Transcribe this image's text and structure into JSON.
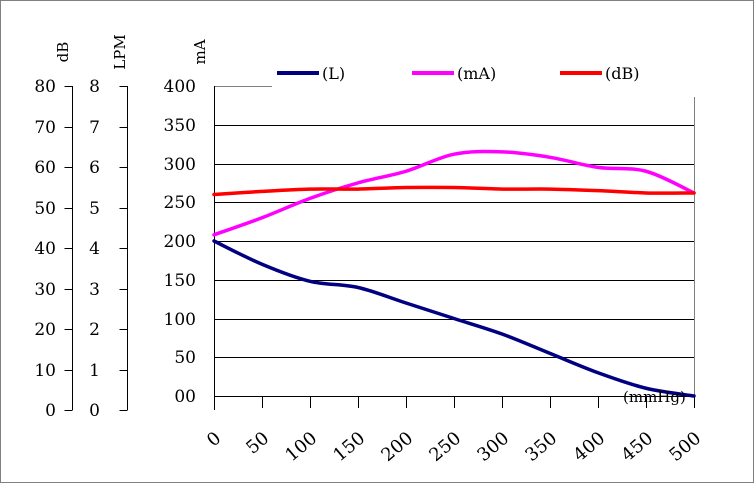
{
  "chart_data": {
    "type": "line",
    "x": [
      0,
      50,
      100,
      150,
      200,
      250,
      300,
      350,
      400,
      450,
      500
    ],
    "x_tick_labels": [
      "0",
      "50",
      "100",
      "150",
      "200",
      "250",
      "300",
      "350",
      "400",
      "450",
      "500"
    ],
    "x_unit": "(mmHg)",
    "y_axes": [
      {
        "title": "dB",
        "min": 0,
        "max": 80,
        "ticks": [
          "0",
          "10",
          "20",
          "30",
          "40",
          "50",
          "60",
          "70",
          "80"
        ]
      },
      {
        "title": "LPM",
        "min": 0,
        "max": 8,
        "ticks": [
          "0",
          "1",
          "2",
          "3",
          "4",
          "5",
          "6",
          "7",
          "8"
        ]
      },
      {
        "title": "mA",
        "min": 0,
        "max": 400,
        "ticks": [
          "00",
          "50",
          "100",
          "150",
          "200",
          "250",
          "300",
          "350",
          "400"
        ]
      }
    ],
    "series": [
      {
        "name": "(L)",
        "color": "#000080",
        "values_on_mA_scale": [
          200,
          170,
          148,
          140,
          120,
          100,
          80,
          55,
          30,
          10,
          0
        ]
      },
      {
        "name": "(mA)",
        "color": "#ff00ff",
        "values_on_mA_scale": [
          208,
          230,
          255,
          275,
          290,
          312,
          315,
          308,
          295,
          290,
          262
        ]
      },
      {
        "name": "(dB)",
        "color": "#ff0000",
        "values_on_mA_scale": [
          260,
          264,
          267,
          267,
          269,
          269,
          267,
          267,
          265,
          262,
          262
        ]
      }
    ],
    "grid": true,
    "legend_position": "top"
  }
}
